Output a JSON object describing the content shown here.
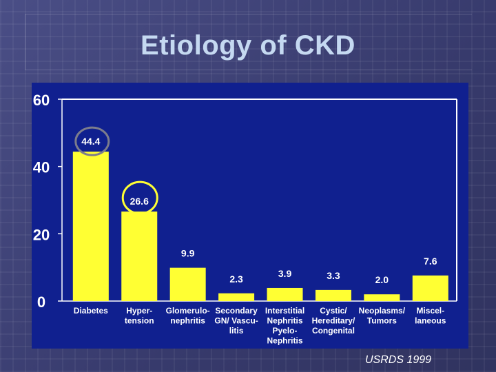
{
  "slide": {
    "title": "Etiology of CKD",
    "source": "USRDS 1999"
  },
  "colors": {
    "plot_background": "#10208f",
    "bar_fill": "#ffff33",
    "axis": "#ffffff",
    "text": "#ffffff",
    "highlight_grey": "#7c7c8c",
    "highlight_yellow": "#ffff33"
  },
  "chart_data": {
    "type": "bar",
    "title": "Etiology of CKD",
    "xlabel": "",
    "ylabel": "",
    "ylim": [
      0,
      60
    ],
    "yticks": [
      "0",
      "20",
      "40",
      "60"
    ],
    "grid": false,
    "categories": [
      [
        "Diabetes"
      ],
      [
        "Hyper-",
        "tension"
      ],
      [
        "Glomerulo-",
        "nephritis"
      ],
      [
        "Secondary",
        "GN/ Vascu-",
        "litis"
      ],
      [
        "Interstitial",
        "Nephritis",
        "Pyelo-",
        "Nephritis"
      ],
      [
        "Cystic/",
        "Hereditary/",
        "Congenital"
      ],
      [
        "Neoplasms/",
        "Tumors"
      ],
      [
        "Miscel-",
        "laneous"
      ]
    ],
    "values": [
      44.4,
      26.6,
      9.9,
      2.3,
      3.9,
      3.3,
      2.0,
      7.6
    ],
    "value_labels": [
      "44.4",
      "26.6",
      "9.9",
      "2.3",
      "3.9",
      "3.3",
      "2.0",
      "7.6"
    ],
    "annotations": [
      {
        "type": "circle",
        "target_category": "Diabetes",
        "color": "grey"
      },
      {
        "type": "circle",
        "target_category": "Hypertension",
        "color": "yellow"
      }
    ]
  }
}
